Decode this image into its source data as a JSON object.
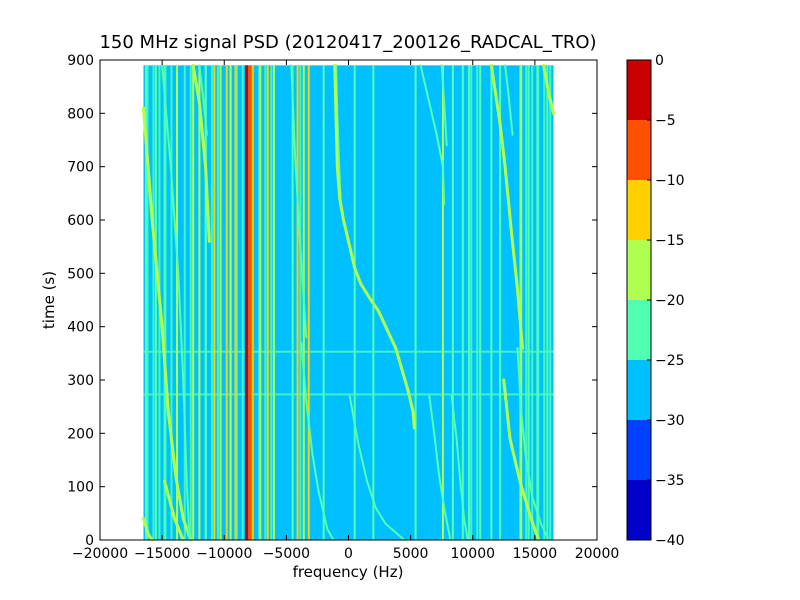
{
  "chart_data": {
    "type": "heatmap",
    "title": "150 MHz signal PSD (20120417_200126_RADCAL_TRO)",
    "xlabel": "frequency (Hz)",
    "ylabel": "time (s)",
    "xlim": [
      -20000,
      20000
    ],
    "ylim": [
      0,
      900
    ],
    "x_ticks": [
      -20000,
      -15000,
      -10000,
      -5000,
      0,
      5000,
      10000,
      15000,
      20000
    ],
    "y_ticks": [
      0,
      100,
      200,
      300,
      400,
      500,
      600,
      700,
      800,
      900
    ],
    "data_extent": {
      "x": [
        -16500,
        16500
      ],
      "y": [
        0,
        890
      ]
    },
    "background_level": -27.5,
    "horizontal_bands": [
      {
        "t": 273,
        "level": -22.5
      },
      {
        "t": 353,
        "level": -22.5
      }
    ],
    "colorbar": {
      "label": "",
      "range": [
        -40,
        0
      ],
      "ticks": [
        0,
        -5,
        -10,
        -15,
        -20,
        -25,
        -30,
        -35,
        -40
      ],
      "levels": [
        {
          "from": -40,
          "to": -35,
          "color": "#0000c8"
        },
        {
          "from": -35,
          "to": -30,
          "color": "#0040ff"
        },
        {
          "from": -30,
          "to": -25,
          "color": "#00c0ff"
        },
        {
          "from": -25,
          "to": -20,
          "color": "#50ffb0"
        },
        {
          "from": -20,
          "to": -15,
          "color": "#b0ff50"
        },
        {
          "from": -15,
          "to": -10,
          "color": "#ffd000"
        },
        {
          "from": -10,
          "to": -5,
          "color": "#ff5000"
        },
        {
          "from": -5,
          "to": 0,
          "color": "#c80000"
        }
      ]
    },
    "background_regions": [
      {
        "x": [
          -16500,
          -14200
        ],
        "level": -22.5
      },
      {
        "x": [
          -13500,
          -12300
        ],
        "level": -22.5
      },
      {
        "x": [
          -11800,
          -10200
        ],
        "level": -22.5
      },
      {
        "x": [
          -9800,
          -8400
        ],
        "level": -22.5
      },
      {
        "x": [
          -7500,
          -6000
        ],
        "level": -22.5
      },
      {
        "x": [
          -4200,
          -3800
        ],
        "level": -22.5
      },
      {
        "x": [
          9800,
          10500
        ],
        "level": -22.5
      },
      {
        "x": [
          13500,
          16500
        ],
        "level": -22.5
      }
    ],
    "vertical_lines": [
      {
        "f": -16300,
        "level": -22.5
      },
      {
        "f": -15500,
        "level": -22.5
      },
      {
        "f": -14800,
        "level": -22.5
      },
      {
        "f": -13800,
        "level": -17.5
      },
      {
        "f": -12500,
        "level": -17.5
      },
      {
        "f": -12000,
        "level": -17.5
      },
      {
        "f": -11500,
        "level": -22.5
      },
      {
        "f": -10800,
        "level": -12.5
      },
      {
        "f": -10300,
        "level": -17.5
      },
      {
        "f": -9800,
        "level": -12.5
      },
      {
        "f": -9500,
        "level": -17.5
      },
      {
        "f": -9100,
        "level": -12.5
      },
      {
        "f": -8200,
        "level": -2.5
      },
      {
        "f": -7950,
        "level": -7.5
      },
      {
        "f": -7700,
        "level": -12.5
      },
      {
        "f": -7100,
        "level": -17.5
      },
      {
        "f": -6500,
        "level": -12.5
      },
      {
        "f": -6000,
        "level": -17.5
      },
      {
        "f": -4500,
        "level": -22.5
      },
      {
        "f": -4100,
        "level": -12.5
      },
      {
        "f": -3600,
        "level": -17.5
      },
      {
        "f": -3200,
        "level": -12.5
      },
      {
        "f": -2000,
        "level": -22.5
      },
      {
        "f": 500,
        "level": -22.5
      },
      {
        "f": 2000,
        "level": -22.5
      },
      {
        "f": 5400,
        "level": -22.5
      },
      {
        "f": 7600,
        "level": -17.5
      },
      {
        "f": 8400,
        "level": -22.5
      },
      {
        "f": 9200,
        "level": -22.5
      },
      {
        "f": 9700,
        "level": -22.5
      },
      {
        "f": 10600,
        "level": -22.5
      },
      {
        "f": 11500,
        "level": -22.5
      },
      {
        "f": 12200,
        "level": -22.5
      },
      {
        "f": 13900,
        "level": -17.5
      },
      {
        "f": 14500,
        "level": -22.5
      },
      {
        "f": 15200,
        "level": -22.5
      },
      {
        "f": 16000,
        "level": -22.5
      }
    ],
    "curved_tracks": [
      {
        "level": -17.5,
        "points": [
          [
            -16500,
            810
          ],
          [
            -15800,
            600
          ],
          [
            -15000,
            400
          ],
          [
            -14500,
            240
          ],
          [
            -13900,
            120
          ],
          [
            -13300,
            40
          ],
          [
            -12700,
            0
          ]
        ]
      },
      {
        "level": -22.5,
        "points": [
          [
            -15000,
            890
          ],
          [
            -14300,
            700
          ],
          [
            -13700,
            500
          ],
          [
            -13300,
            300
          ],
          [
            -13000,
            100
          ],
          [
            -12800,
            0
          ]
        ]
      },
      {
        "level": -17.5,
        "points": [
          [
            -12500,
            890
          ],
          [
            -12000,
            820
          ],
          [
            -11500,
            700
          ],
          [
            -11200,
            560
          ]
        ]
      },
      {
        "level": -22.5,
        "points": [
          [
            -12000,
            890
          ],
          [
            -11700,
            830
          ],
          [
            -11400,
            760
          ]
        ]
      },
      {
        "level": -17.5,
        "points": [
          [
            -16500,
            40
          ],
          [
            -16100,
            10
          ],
          [
            -15800,
            0
          ]
        ]
      },
      {
        "level": -17.5,
        "points": [
          [
            -14800,
            110
          ],
          [
            -14000,
            40
          ],
          [
            -13300,
            0
          ]
        ]
      },
      {
        "level": -22.5,
        "points": [
          [
            -4600,
            890
          ],
          [
            -4300,
            720
          ],
          [
            -3900,
            560
          ],
          [
            -3600,
            450
          ],
          [
            -3400,
            380
          ]
        ]
      },
      {
        "level": -22.5,
        "points": [
          [
            -3800,
            370
          ],
          [
            -3400,
            260
          ],
          [
            -2900,
            160
          ],
          [
            -2400,
            90
          ],
          [
            -1700,
            20
          ],
          [
            -1200,
            0
          ]
        ]
      },
      {
        "level": -22.5,
        "points": [
          [
            -1000,
            890
          ],
          [
            -900,
            800
          ],
          [
            -750,
            700
          ],
          [
            -600,
            620
          ]
        ]
      },
      {
        "level": -17.5,
        "points": [
          [
            -1100,
            890
          ],
          [
            -900,
            700
          ],
          [
            -700,
            640
          ],
          [
            -400,
            600
          ],
          [
            0,
            560
          ],
          [
            500,
            510
          ],
          [
            1000,
            480
          ],
          [
            1800,
            450
          ],
          [
            2400,
            430
          ],
          [
            3000,
            400
          ],
          [
            3800,
            360
          ],
          [
            4300,
            320
          ],
          [
            4800,
            280
          ],
          [
            5200,
            240
          ],
          [
            5300,
            210
          ]
        ]
      },
      {
        "level": -22.5,
        "points": [
          [
            100,
            270
          ],
          [
            800,
            180
          ],
          [
            1500,
            110
          ],
          [
            2200,
            60
          ],
          [
            3000,
            30
          ],
          [
            4500,
            0
          ]
        ]
      },
      {
        "level": -22.5,
        "points": [
          [
            5800,
            890
          ],
          [
            6500,
            820
          ],
          [
            7100,
            760
          ],
          [
            7600,
            700
          ],
          [
            7700,
            630
          ]
        ]
      },
      {
        "level": -22.5,
        "points": [
          [
            7500,
            890
          ],
          [
            7700,
            820
          ],
          [
            7900,
            740
          ]
        ]
      },
      {
        "level": -22.5,
        "points": [
          [
            6500,
            270
          ],
          [
            6900,
            200
          ],
          [
            7300,
            120
          ],
          [
            7700,
            60
          ],
          [
            8200,
            0
          ]
        ]
      },
      {
        "level": -22.5,
        "points": [
          [
            8300,
            270
          ],
          [
            8700,
            190
          ],
          [
            9000,
            110
          ],
          [
            9300,
            40
          ],
          [
            9600,
            0
          ]
        ]
      },
      {
        "level": -17.5,
        "points": [
          [
            11500,
            890
          ],
          [
            12200,
            780
          ],
          [
            12600,
            700
          ],
          [
            13100,
            580
          ],
          [
            13600,
            470
          ],
          [
            14000,
            360
          ]
        ]
      },
      {
        "level": -22.5,
        "points": [
          [
            12600,
            890
          ],
          [
            12900,
            830
          ],
          [
            13200,
            760
          ]
        ]
      },
      {
        "level": -22.5,
        "points": [
          [
            13600,
            360
          ],
          [
            13900,
            240
          ],
          [
            14300,
            150
          ],
          [
            14800,
            80
          ],
          [
            15500,
            30
          ],
          [
            16100,
            0
          ]
        ]
      },
      {
        "level": -17.5,
        "points": [
          [
            12500,
            300
          ],
          [
            13000,
            190
          ],
          [
            13800,
            110
          ],
          [
            14700,
            40
          ],
          [
            15300,
            0
          ]
        ]
      },
      {
        "level": -17.5,
        "points": [
          [
            15700,
            890
          ],
          [
            16100,
            840
          ],
          [
            16500,
            800
          ]
        ]
      }
    ]
  }
}
